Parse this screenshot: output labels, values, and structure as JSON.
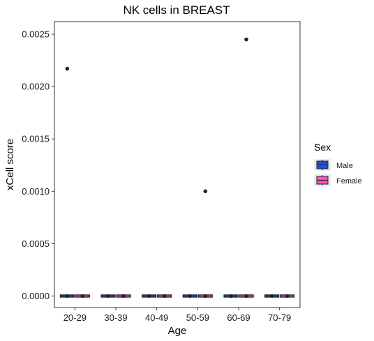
{
  "chart_data": {
    "type": "box",
    "title": "NK cells in BREAST",
    "xlabel": "Age",
    "ylabel": "xCell score",
    "categories": [
      "20-29",
      "30-39",
      "40-49",
      "50-59",
      "60-69",
      "70-79"
    ],
    "ylim": [
      -0.00011,
      0.00262
    ],
    "yticks": [
      "0.0000",
      "0.0005",
      "0.0010",
      "0.0015",
      "0.0020",
      "0.0025"
    ],
    "ytick_values": [
      0.0,
      0.0005,
      0.001,
      0.0015,
      0.002,
      0.0025
    ],
    "grid": false,
    "legend": {
      "title": "Sex",
      "position": "right",
      "entries": [
        {
          "label": "Male",
          "color": "#1f4fe0"
        },
        {
          "label": "Female",
          "color": "#ff4fc8"
        }
      ]
    },
    "series": [
      {
        "name": "Male",
        "color": "#1f4fe0",
        "median": [
          0,
          0,
          0,
          0,
          0,
          0
        ],
        "outliers": [
          [
            0.00217
          ],
          [],
          [],
          [],
          [],
          []
        ]
      },
      {
        "name": "Female",
        "color": "#ff4fc8",
        "median": [
          0,
          0,
          0,
          0,
          0,
          0
        ],
        "outliers": [
          [],
          [],
          [],
          [
            0.001
          ],
          [
            0.00245
          ],
          []
        ]
      }
    ]
  }
}
